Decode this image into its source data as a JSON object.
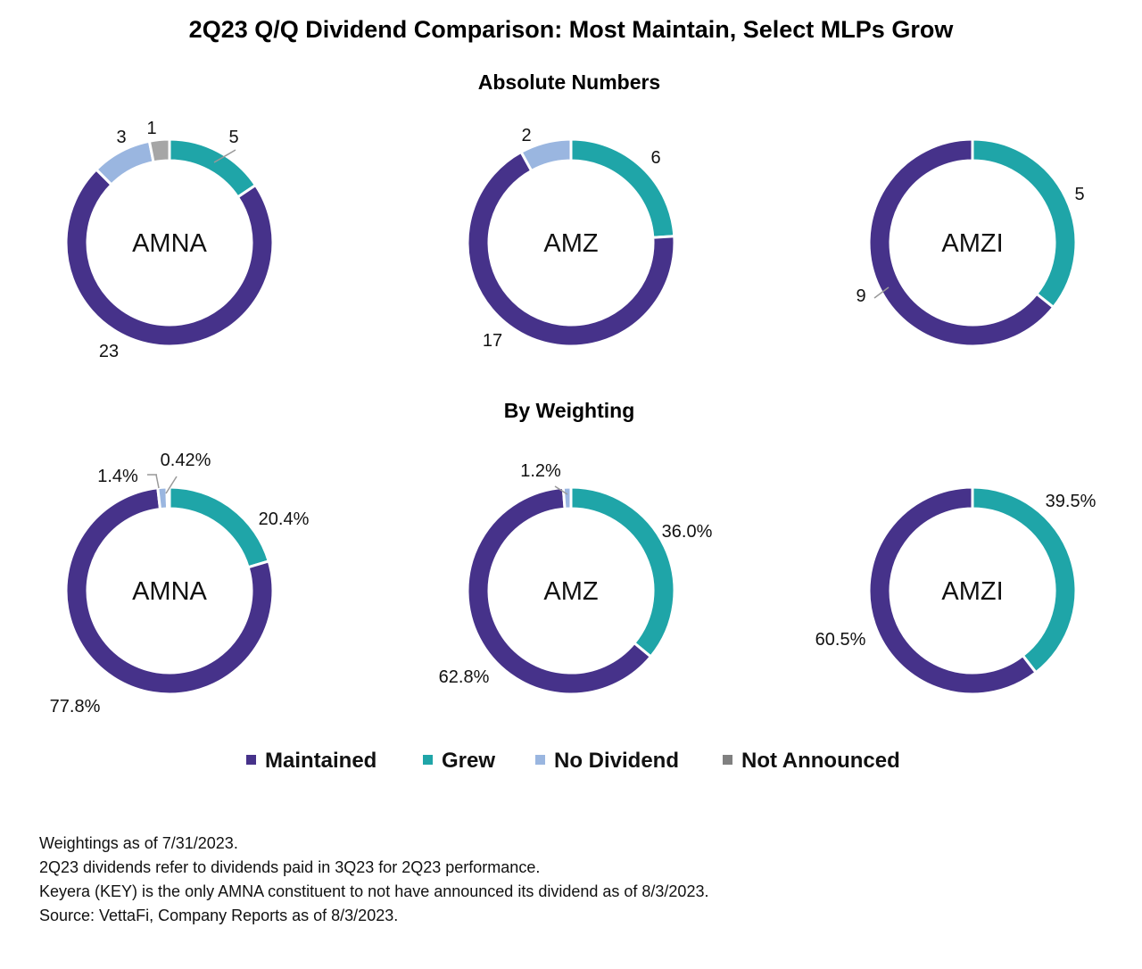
{
  "title": "2Q23 Q/Q Dividend Comparison: Most Maintain, Select MLPs Grow",
  "colors": {
    "Maintained": "#46328a",
    "Grew": "#1fa5a8",
    "No Dividend": "#9ab6e0",
    "Not Announced": "#a6a6a6"
  },
  "legend": [
    "Maintained",
    "Grew",
    "No Dividend",
    "Not Announced"
  ],
  "chart_data": [
    {
      "type": "pie",
      "variant": "donut",
      "section": "Absolute Numbers",
      "center_label": "AMNA",
      "categories": [
        "Grew",
        "Maintained",
        "No Dividend",
        "Not Announced"
      ],
      "values": [
        5,
        23,
        3,
        1
      ],
      "labels": [
        "5",
        "23",
        "3",
        "1"
      ]
    },
    {
      "type": "pie",
      "variant": "donut",
      "section": "Absolute Numbers",
      "center_label": "AMZ",
      "categories": [
        "Grew",
        "Maintained",
        "No Dividend"
      ],
      "values": [
        6,
        17,
        2
      ],
      "labels": [
        "6",
        "17",
        "2"
      ]
    },
    {
      "type": "pie",
      "variant": "donut",
      "section": "Absolute Numbers",
      "center_label": "AMZI",
      "categories": [
        "Grew",
        "Maintained"
      ],
      "values": [
        5,
        9
      ],
      "labels": [
        "5",
        "9"
      ]
    },
    {
      "type": "pie",
      "variant": "donut",
      "section": "By Weighting",
      "center_label": "AMNA",
      "categories": [
        "Grew",
        "Maintained",
        "No Dividend",
        "Not Announced"
      ],
      "values": [
        20.4,
        77.8,
        1.4,
        0.42
      ],
      "labels": [
        "20.4%",
        "77.8%",
        "1.4%",
        "0.42%"
      ]
    },
    {
      "type": "pie",
      "variant": "donut",
      "section": "By Weighting",
      "center_label": "AMZ",
      "categories": [
        "Grew",
        "Maintained",
        "No Dividend"
      ],
      "values": [
        36.0,
        62.8,
        1.2
      ],
      "labels": [
        "36.0%",
        "62.8%",
        "1.2%"
      ]
    },
    {
      "type": "pie",
      "variant": "donut",
      "section": "By Weighting",
      "center_label": "AMZI",
      "categories": [
        "Grew",
        "Maintained"
      ],
      "values": [
        39.5,
        60.5
      ],
      "labels": [
        "39.5%",
        "60.5%"
      ]
    }
  ],
  "sections": [
    "Absolute Numbers",
    "By Weighting"
  ],
  "notes": [
    "Weightings as of 7/31/2023.",
    "2Q23 dividends refer to dividends paid in 3Q23 for 2Q23 performance.",
    "Keyera (KEY) is the only AMNA constituent to not have announced its dividend as of 8/3/2023.",
    "Source: VettaFi, Company Reports as of 8/3/2023."
  ]
}
